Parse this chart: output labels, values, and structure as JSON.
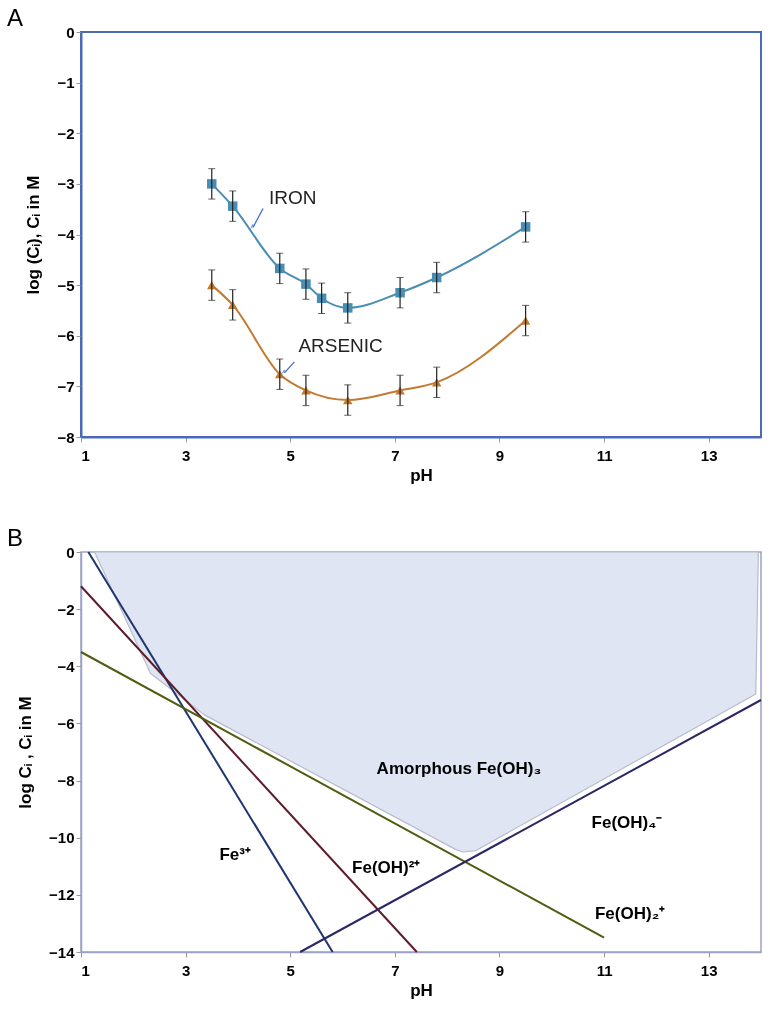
{
  "chart_data": [
    {
      "type": "line",
      "title": "A",
      "xlabel": "pH",
      "ylabel": "log (Cᵢ), Cᵢ in M",
      "xlim": [
        1,
        14
      ],
      "xticks": [
        1,
        3,
        5,
        7,
        9,
        11,
        13
      ],
      "ylim": [
        -8,
        0
      ],
      "yticks": [
        -8,
        -7,
        -6,
        -5,
        -4,
        -3,
        -2,
        -1,
        0
      ],
      "grid": false,
      "legend": false,
      "series": [
        {
          "name": "IRON",
          "color": "#4a8db3",
          "marker": "square",
          "x": [
            3.5,
            3.9,
            4.8,
            5.3,
            5.6,
            6.1,
            7.1,
            7.8,
            9.5
          ],
          "values": [
            -3.0,
            -3.44,
            -4.67,
            -4.98,
            -5.26,
            -5.45,
            -5.15,
            -4.85,
            -3.85
          ],
          "errors": [
            0.3,
            0.3,
            0.3,
            0.3,
            0.3,
            0.3,
            0.3,
            0.3,
            0.3
          ]
        },
        {
          "name": "ARSENIC",
          "color": "#c27a31",
          "marker": "triangle",
          "x": [
            3.5,
            3.9,
            4.8,
            5.3,
            6.1,
            7.1,
            7.8,
            9.5
          ],
          "values": [
            -5.0,
            -5.39,
            -6.76,
            -7.08,
            -7.27,
            -7.08,
            -6.92,
            -5.7
          ],
          "errors": [
            0.3,
            0.3,
            0.3,
            0.3,
            0.3,
            0.3,
            0.3,
            0.3
          ]
        }
      ]
    },
    {
      "type": "line",
      "title": "B",
      "xlabel": "pH",
      "ylabel": "log Cᵢ , Cᵢ  in  M",
      "xlim": [
        1,
        14
      ],
      "xticks": [
        1,
        3,
        5,
        7,
        9,
        11,
        13
      ],
      "ylim": [
        -14,
        0
      ],
      "yticks": [
        -14,
        -12,
        -10,
        -8,
        -6,
        -4,
        -2,
        0
      ],
      "grid": false,
      "legend": false,
      "marker": "none",
      "series": [
        {
          "name": "Fe³⁺",
          "color": "#1f3570",
          "x": [
            1.14,
            5.81
          ],
          "values": [
            0,
            -14
          ]
        },
        {
          "name": "Fe(OH)²⁺",
          "color": "#5e1b2b",
          "x": [
            1,
            7.42
          ],
          "values": [
            -1.2,
            -14
          ]
        },
        {
          "name": "Fe(OH)₂⁺",
          "color": "#4f5d12",
          "x": [
            1,
            11
          ],
          "values": [
            -3.5,
            -13.5
          ]
        },
        {
          "name": "Fe(OH)₄⁻",
          "color": "#2b2766",
          "x": [
            5.19,
            14
          ],
          "values": [
            -14,
            -5.18
          ]
        },
        {
          "name": "Amorphous  Fe(OH)₃",
          "type": "area",
          "color": "#dfe5f2",
          "x": [
            1.26,
            2.33,
            3.36,
            8.15,
            8.3,
            8.55,
            13.9,
            13.95
          ],
          "values": [
            0,
            -4.25,
            -5.7,
            -10.4,
            -10.5,
            -10.45,
            -4.97,
            0
          ]
        }
      ]
    }
  ]
}
